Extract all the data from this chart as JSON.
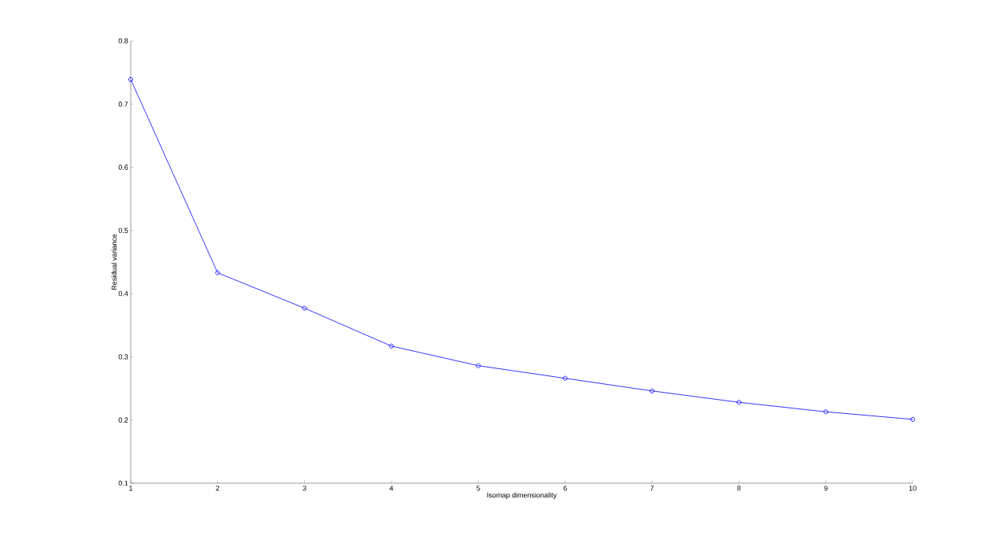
{
  "chart_data": {
    "type": "line",
    "xlabel": "Isomap dimensionality",
    "ylabel": "Residual variance",
    "x": [
      1,
      2,
      3,
      4,
      5,
      6,
      7,
      8,
      9,
      10
    ],
    "values": [
      0.739,
      0.433,
      0.377,
      0.317,
      0.286,
      0.266,
      0.246,
      0.228,
      0.213,
      0.201
    ],
    "color": "#0000ff",
    "marker": "circle",
    "line_style": "solid",
    "xlim": [
      1,
      10
    ],
    "ylim": [
      0.1,
      0.8
    ],
    "xticks": [
      1,
      2,
      3,
      4,
      5,
      6,
      7,
      8,
      9,
      10
    ],
    "yticks": [
      0.1,
      0.2,
      0.3,
      0.4,
      0.5,
      0.6,
      0.7,
      0.8
    ]
  }
}
